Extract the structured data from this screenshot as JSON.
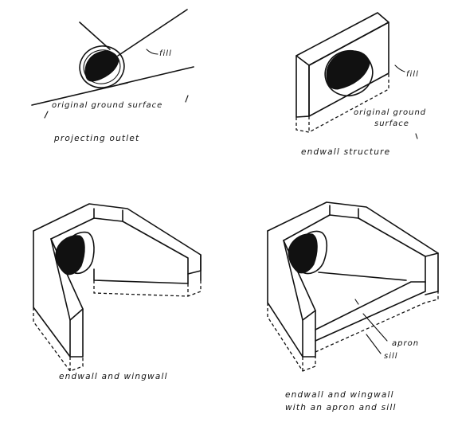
{
  "panels": {
    "projecting_outlet": {
      "caption": "projecting outlet",
      "label_fill": "fill",
      "label_ground": "original ground surface"
    },
    "endwall_structure": {
      "caption": "endwall structure",
      "label_fill": "fill",
      "label_ground_line1": "original ground",
      "label_ground_line2": "surface"
    },
    "endwall_wingwall": {
      "caption": "endwall and wingwall"
    },
    "endwall_wingwall_apron": {
      "caption_line1": "endwall and wingwall",
      "caption_line2": "with an apron and sill",
      "label_apron": "apron",
      "label_sill": "sill"
    }
  },
  "colors": {
    "ink": "#111111",
    "paper": "#ffffff"
  }
}
